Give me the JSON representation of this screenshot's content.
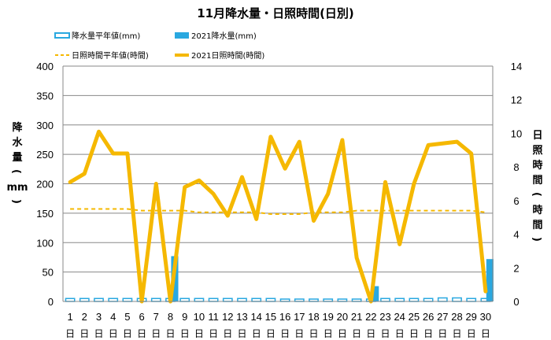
{
  "chart_data": {
    "type": "bar+line",
    "title": "11月降水量・日照時間(日別)",
    "y_left_label": "降水量(mm)",
    "y_right_label": "日照時間(時間)",
    "y_left_ticks": [
      "0",
      "50",
      "100",
      "150",
      "200",
      "250",
      "300",
      "350",
      "400"
    ],
    "y_right_ticks": [
      "0",
      "2",
      "4",
      "6",
      "8",
      "10",
      "12",
      "14"
    ],
    "ylim_left": [
      0,
      400
    ],
    "ylim_right": [
      0,
      14
    ],
    "day_suffix": "日",
    "categories": [
      "1",
      "2",
      "3",
      "4",
      "5",
      "6",
      "7",
      "8",
      "9",
      "10",
      "11",
      "12",
      "13",
      "14",
      "15",
      "16",
      "17",
      "18",
      "19",
      "20",
      "21",
      "22",
      "23",
      "24",
      "25",
      "26",
      "27",
      "28",
      "29",
      "30"
    ],
    "legend_placement": "top",
    "series": [
      {
        "name": "降水量平年値(mm)",
        "kind": "bar-outline",
        "axis": "left",
        "color": "#29a8e0",
        "values": [
          5,
          5,
          5,
          5,
          5,
          5,
          5,
          5,
          5,
          5,
          5,
          5,
          5,
          5,
          5,
          4,
          4,
          4,
          4,
          4,
          4,
          4,
          5,
          5,
          5,
          5,
          6,
          6,
          5,
          5
        ]
      },
      {
        "name": "2021降水量(mm)",
        "kind": "bar",
        "axis": "left",
        "color": "#29a8e0",
        "values": [
          0,
          0,
          0,
          0,
          0,
          0,
          0,
          77,
          0,
          0,
          0,
          0,
          0,
          0,
          0,
          0,
          0,
          0,
          0,
          0,
          0,
          26,
          0,
          0,
          0,
          0,
          0,
          0,
          0,
          72
        ]
      },
      {
        "name": "日照時間平年値(時間)",
        "kind": "line-dashed",
        "axis": "right",
        "color": "#f5b800",
        "values": [
          5.5,
          5.5,
          5.5,
          5.5,
          5.5,
          5.4,
          5.4,
          5.4,
          5.4,
          5.3,
          5.3,
          5.3,
          5.3,
          5.3,
          5.2,
          5.2,
          5.2,
          5.3,
          5.3,
          5.3,
          5.4,
          5.4,
          5.4,
          5.4,
          5.4,
          5.4,
          5.4,
          5.4,
          5.4,
          5.3
        ]
      },
      {
        "name": "2021日照時間(時間)",
        "kind": "line",
        "axis": "right",
        "color": "#f5b800",
        "values": [
          7.1,
          7.6,
          10.1,
          8.8,
          8.8,
          0,
          7.0,
          0,
          6.8,
          7.2,
          6.4,
          5.1,
          7.4,
          4.9,
          9.8,
          7.9,
          9.5,
          4.8,
          6.4,
          9.6,
          2.6,
          0,
          7.1,
          3.4,
          7.0,
          9.3,
          9.4,
          9.5,
          8.8,
          0.6
        ]
      }
    ]
  }
}
